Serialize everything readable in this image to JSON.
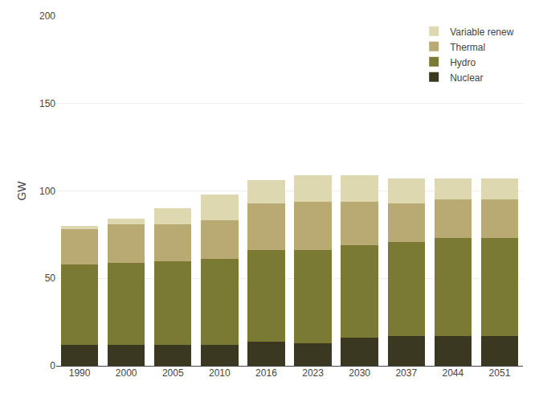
{
  "chart_data": {
    "type": "bar",
    "stacked": true,
    "ylabel": "GW",
    "categories": [
      "1990",
      "2000",
      "2005",
      "2010",
      "2016",
      "2023",
      "2030",
      "2037",
      "2044",
      "2051"
    ],
    "series": [
      {
        "name": "Nuclear",
        "color": "#3a3820",
        "values": [
          12,
          12,
          12,
          12,
          14,
          13,
          16,
          17,
          17,
          17
        ]
      },
      {
        "name": "Hydro",
        "color": "#7a7a35",
        "values": [
          46,
          47,
          48,
          49,
          52,
          53,
          53,
          54,
          56,
          56
        ]
      },
      {
        "name": "Thermal",
        "color": "#b8aa72",
        "values": [
          20,
          22,
          21,
          22,
          27,
          28,
          25,
          22,
          22,
          22
        ]
      },
      {
        "name": "Variable renew",
        "color": "#ddd8b0",
        "values": [
          2,
          3,
          9,
          15,
          13,
          15,
          15,
          14,
          12,
          12
        ]
      }
    ],
    "ylim": [
      0,
      200
    ],
    "yticks": [
      0,
      50,
      100,
      150,
      200
    ],
    "grid": true,
    "legend": "upper right"
  }
}
